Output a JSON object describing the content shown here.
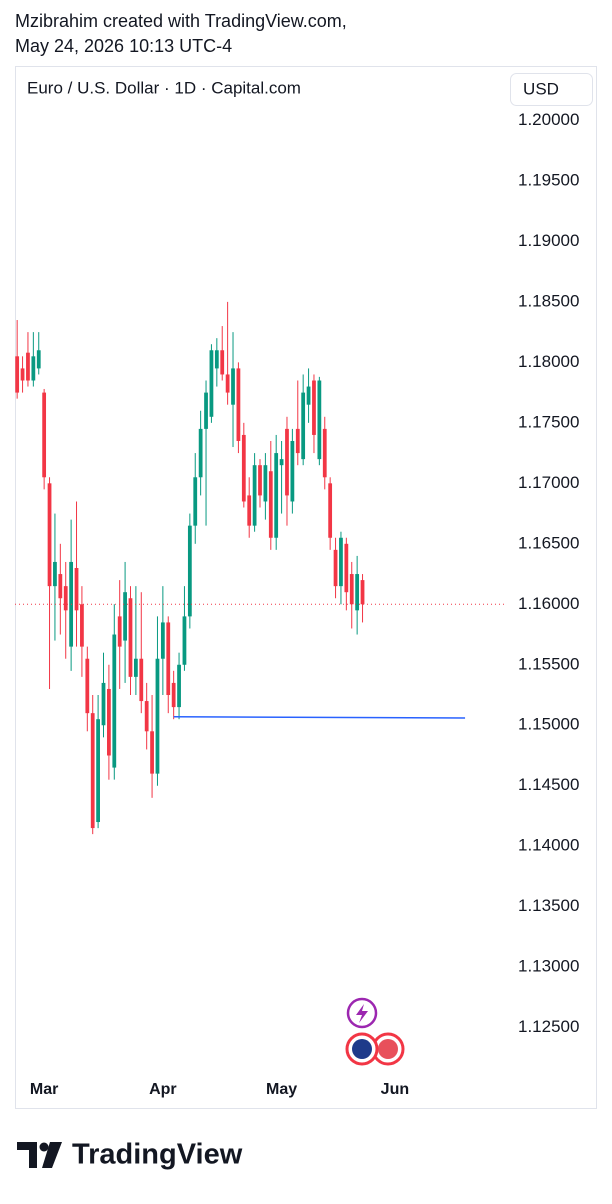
{
  "header": {
    "line1": "Mzibrahim created with TradingView.com,",
    "line2": "May 24, 2026 10:13 UTC-4"
  },
  "chart_data": {
    "type": "candlestick",
    "title": "Euro / U.S. Dollar · 1D · Capital.com",
    "currency": "USD",
    "up_color": "#089981",
    "down_color": "#f23645",
    "x": [
      0,
      1,
      2,
      3,
      4,
      5,
      6,
      7,
      8,
      9,
      10,
      11,
      12,
      13,
      14,
      15,
      16,
      17,
      18,
      19,
      20,
      21,
      22,
      23,
      24,
      25,
      26,
      27,
      28,
      29,
      30,
      31,
      32,
      33,
      34,
      35,
      36,
      37,
      38,
      39,
      40,
      41,
      42,
      43,
      44,
      45,
      46,
      47,
      48,
      49,
      50,
      51,
      52,
      53,
      54,
      55,
      56,
      57,
      58,
      59,
      60,
      61,
      62,
      63,
      64
    ],
    "open": [
      1.1805,
      1.1795,
      1.1808,
      1.1785,
      1.1795,
      1.1775,
      1.17,
      1.1615,
      1.1625,
      1.1615,
      1.1565,
      1.163,
      1.16,
      1.1555,
      1.151,
      1.142,
      1.15,
      1.153,
      1.1465,
      1.159,
      1.157,
      1.1605,
      1.154,
      1.1555,
      1.152,
      1.1495,
      1.146,
      1.1555,
      1.1585,
      1.1535,
      1.1515,
      1.155,
      1.159,
      1.1665,
      1.1705,
      1.1745,
      1.1755,
      1.1795,
      1.181,
      1.179,
      1.1765,
      1.1795,
      1.174,
      1.169,
      1.1665,
      1.1715,
      1.1685,
      1.171,
      1.1655,
      1.1715,
      1.1745,
      1.1685,
      1.1745,
      1.172,
      1.1765,
      1.1785,
      1.172,
      1.1745,
      1.17,
      1.1645,
      1.1615,
      1.165,
      1.1625,
      1.1595,
      1.162
    ],
    "high": [
      1.1835,
      1.1805,
      1.1825,
      1.1825,
      1.1825,
      1.1778,
      1.1705,
      1.1675,
      1.165,
      1.1635,
      1.167,
      1.1685,
      1.1615,
      1.1565,
      1.1525,
      1.1525,
      1.156,
      1.155,
      1.16,
      1.162,
      1.1635,
      1.1615,
      1.1615,
      1.161,
      1.1535,
      1.1525,
      1.159,
      1.1615,
      1.159,
      1.1545,
      1.156,
      1.1615,
      1.1675,
      1.1725,
      1.176,
      1.1785,
      1.1815,
      1.182,
      1.183,
      1.185,
      1.1825,
      1.18,
      1.175,
      1.1705,
      1.1725,
      1.172,
      1.1725,
      1.1735,
      1.174,
      1.1735,
      1.1755,
      1.1745,
      1.1785,
      1.179,
      1.1795,
      1.179,
      1.1788,
      1.1755,
      1.1705,
      1.1655,
      1.166,
      1.1655,
      1.1635,
      1.164,
      1.1625
    ],
    "low": [
      1.177,
      1.1775,
      1.178,
      1.178,
      1.179,
      1.1695,
      1.153,
      1.157,
      1.1575,
      1.1555,
      1.1545,
      1.1565,
      1.154,
      1.1495,
      1.141,
      1.1415,
      1.149,
      1.1455,
      1.1455,
      1.153,
      1.1535,
      1.1525,
      1.1525,
      1.151,
      1.148,
      1.144,
      1.145,
      1.1525,
      1.151,
      1.1505,
      1.1505,
      1.1545,
      1.158,
      1.165,
      1.169,
      1.1665,
      1.175,
      1.178,
      1.1785,
      1.1765,
      1.173,
      1.1725,
      1.168,
      1.1655,
      1.166,
      1.168,
      1.167,
      1.1645,
      1.1645,
      1.1675,
      1.1665,
      1.1675,
      1.1715,
      1.1715,
      1.175,
      1.1725,
      1.1715,
      1.1695,
      1.1645,
      1.1605,
      1.16,
      1.1595,
      1.158,
      1.1575,
      1.1585
    ],
    "close": [
      1.1775,
      1.1785,
      1.1785,
      1.1805,
      1.181,
      1.1705,
      1.1615,
      1.1635,
      1.1605,
      1.1595,
      1.1635,
      1.1595,
      1.1565,
      1.151,
      1.1415,
      1.1505,
      1.1535,
      1.1475,
      1.1575,
      1.1565,
      1.161,
      1.154,
      1.1555,
      1.152,
      1.1495,
      1.146,
      1.1555,
      1.1585,
      1.1525,
      1.1515,
      1.155,
      1.159,
      1.1665,
      1.1705,
      1.1745,
      1.1775,
      1.181,
      1.181,
      1.179,
      1.1775,
      1.1795,
      1.1735,
      1.1685,
      1.1665,
      1.1715,
      1.169,
      1.1715,
      1.1655,
      1.1725,
      1.172,
      1.169,
      1.1735,
      1.1725,
      1.1775,
      1.178,
      1.174,
      1.1785,
      1.1705,
      1.1655,
      1.1615,
      1.1655,
      1.161,
      1.16,
      1.1625,
      1.16
    ],
    "trendline": {
      "color": "#2962ff",
      "x": [
        29,
        83
      ],
      "y": [
        1.1507,
        1.1506
      ]
    },
    "xlim": [
      -0.4,
      90.4
    ],
    "xticks": [
      {
        "value": 5,
        "label": "Mar"
      },
      {
        "value": 27,
        "label": "Apr"
      },
      {
        "value": 49,
        "label": "May"
      },
      {
        "value": 70,
        "label": "Jun"
      }
    ],
    "ylim": [
      1.1215,
      1.2045
    ],
    "yticks": [
      {
        "value": 1.2,
        "label": "1.20000"
      },
      {
        "value": 1.195,
        "label": "1.19500"
      },
      {
        "value": 1.19,
        "label": "1.19000"
      },
      {
        "value": 1.185,
        "label": "1.18500"
      },
      {
        "value": 1.18,
        "label": "1.18000"
      },
      {
        "value": 1.175,
        "label": "1.17500"
      },
      {
        "value": 1.17,
        "label": "1.17000"
      },
      {
        "value": 1.165,
        "label": "1.16500"
      },
      {
        "value": 1.16,
        "label": "1.16000"
      },
      {
        "value": 1.155,
        "label": "1.15500"
      },
      {
        "value": 1.15,
        "label": "1.15000"
      },
      {
        "value": 1.145,
        "label": "1.14500"
      },
      {
        "value": 1.14,
        "label": "1.14000"
      },
      {
        "value": 1.135,
        "label": "1.13500"
      },
      {
        "value": 1.13,
        "label": "1.13000"
      },
      {
        "value": 1.125,
        "label": "1.12500"
      }
    ]
  },
  "footer": {
    "brand": "TradingView"
  }
}
